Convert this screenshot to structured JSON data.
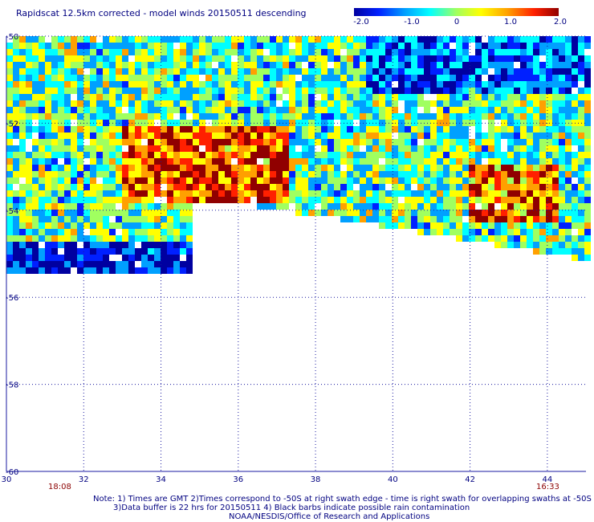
{
  "title": "Rapidscat 12.5km corrected - model winds 20150511 descending",
  "colorbar": {
    "ticks": [
      {
        "label": "-2.0",
        "value": -2.0
      },
      {
        "label": "-1.0",
        "value": -1.0
      },
      {
        "label": "0",
        "value": 0
      },
      {
        "label": "1.0",
        "value": 1.0
      },
      {
        "label": "2.0",
        "value": 2.0
      }
    ],
    "min": -2.0,
    "max": 2.0,
    "colors": [
      "#0000a0",
      "#0020ff",
      "#00a0ff",
      "#00ffff",
      "#a0ff60",
      "#ffff00",
      "#ffa000",
      "#ff2000",
      "#900000"
    ]
  },
  "map": {
    "lon_range": [
      30,
      45
    ],
    "lat_range": [
      -60,
      -50
    ],
    "x_ticks": [
      "30",
      "32",
      "34",
      "36",
      "38",
      "40",
      "42",
      "44"
    ],
    "y_ticks": [
      "-50",
      "-52",
      "-54",
      "-56",
      "-58",
      "-60"
    ],
    "grid": "dotted",
    "swath_start_time": "18:08",
    "swath_end_time": "16:33"
  },
  "notes": {
    "line1": "Note: 1) Times are GMT 2)Times correspond to -50S at right swath edge - time is right swath for overlapping swaths at -50S",
    "line2": "3)Data buffer is 22 hrs for 20150511 4) Black barbs indicate possible rain contamination",
    "line3": "NOAA/NESDIS/Office of Research and Applications"
  }
}
